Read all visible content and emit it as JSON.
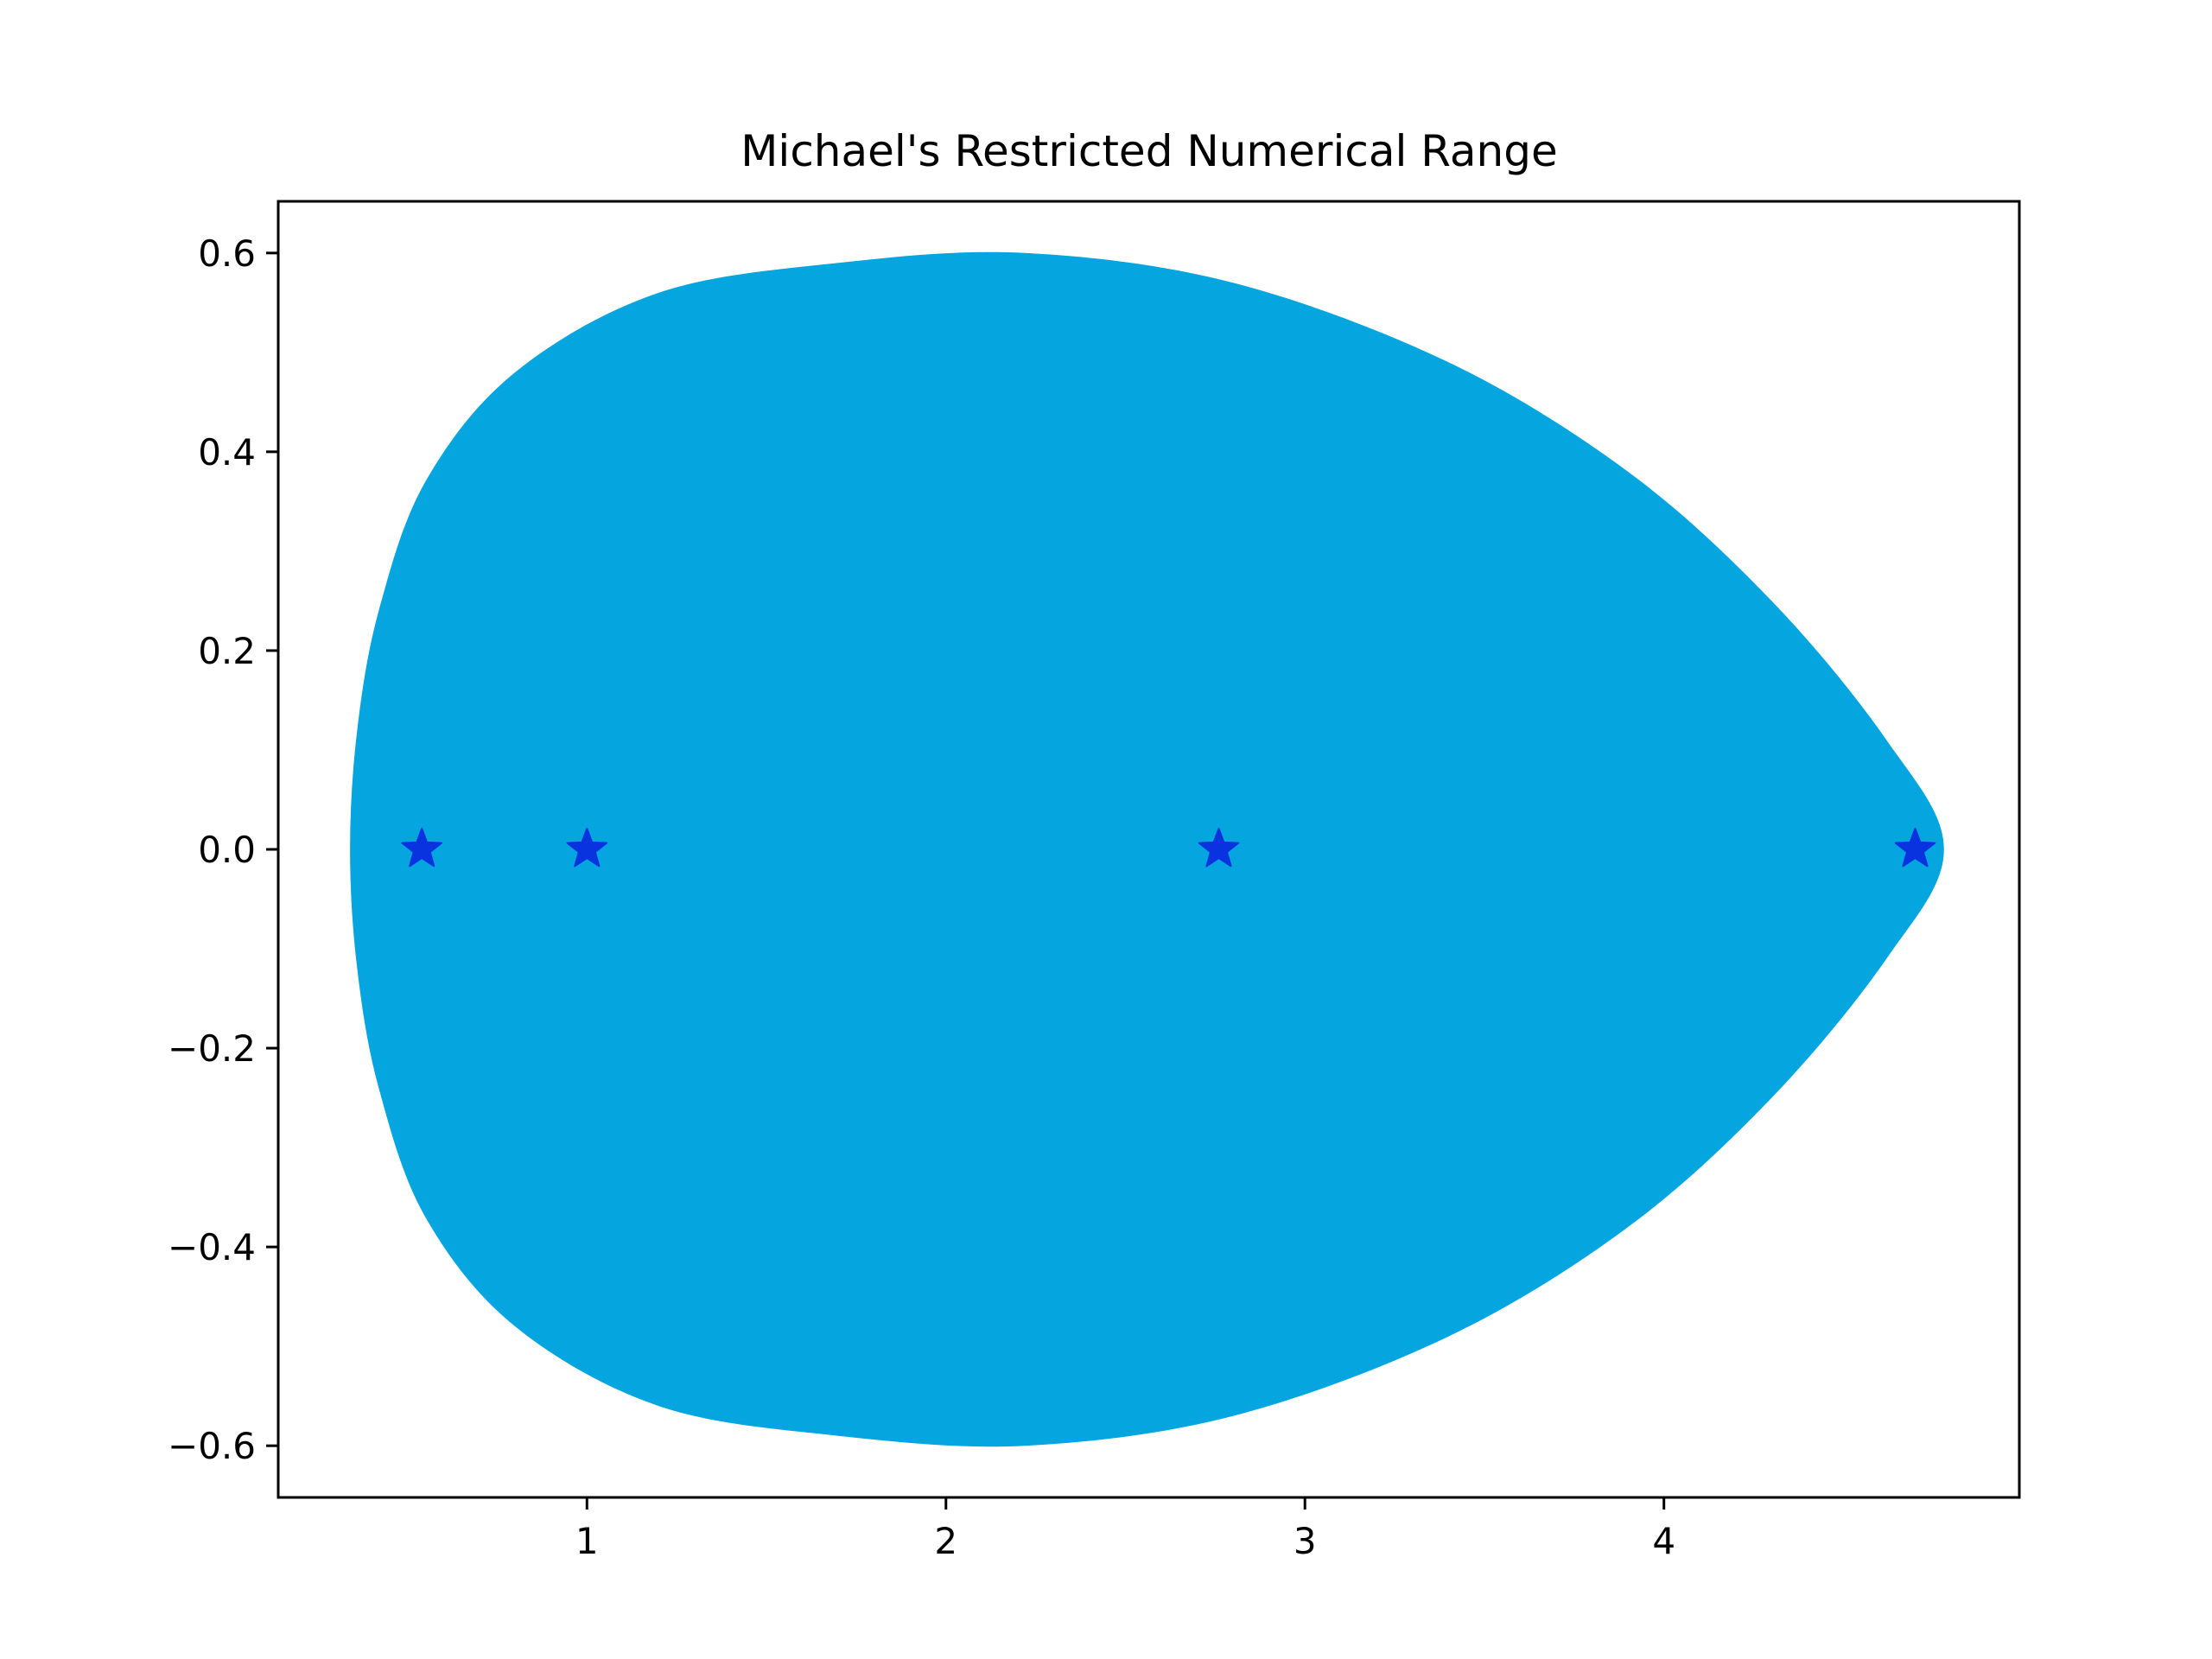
{
  "chart_data": {
    "type": "scatter",
    "title": "Michael's Restricted Numerical Range",
    "xlabel": "",
    "ylabel": "",
    "xlim": [
      0.14,
      4.99
    ],
    "ylim": [
      -0.652,
      0.652
    ],
    "x_ticks": [
      {
        "value": 1,
        "label": "1"
      },
      {
        "value": 2,
        "label": "2"
      },
      {
        "value": 3,
        "label": "3"
      },
      {
        "value": 4,
        "label": "4"
      }
    ],
    "y_ticks": [
      {
        "value": 0.6,
        "label": "0.6"
      },
      {
        "value": 0.4,
        "label": "0.4"
      },
      {
        "value": 0.2,
        "label": "0.2"
      },
      {
        "value": 0.0,
        "label": "0.0"
      },
      {
        "value": -0.2,
        "label": "−0.2"
      },
      {
        "value": -0.4,
        "label": "−0.4"
      },
      {
        "value": -0.6,
        "label": "−0.6"
      }
    ],
    "grid": false,
    "region": {
      "color": "#05a5df",
      "boundary_upper": [
        [
          0.34,
          0.0
        ],
        [
          0.36,
          0.12
        ],
        [
          0.42,
          0.24
        ],
        [
          0.55,
          0.37
        ],
        [
          0.8,
          0.48
        ],
        [
          1.2,
          0.56
        ],
        [
          1.7,
          0.59
        ],
        [
          2.22,
          0.6
        ],
        [
          2.8,
          0.57
        ],
        [
          3.4,
          0.49
        ],
        [
          3.9,
          0.38
        ],
        [
          4.3,
          0.25
        ],
        [
          4.62,
          0.11
        ],
        [
          4.78,
          0.0
        ]
      ]
    },
    "series": [
      {
        "marker": "star",
        "color": "#0a33e0",
        "points": [
          [
            0.54,
            0.0
          ],
          [
            1.0,
            0.0
          ],
          [
            2.76,
            0.0
          ],
          [
            4.7,
            0.0
          ]
        ]
      }
    ]
  }
}
